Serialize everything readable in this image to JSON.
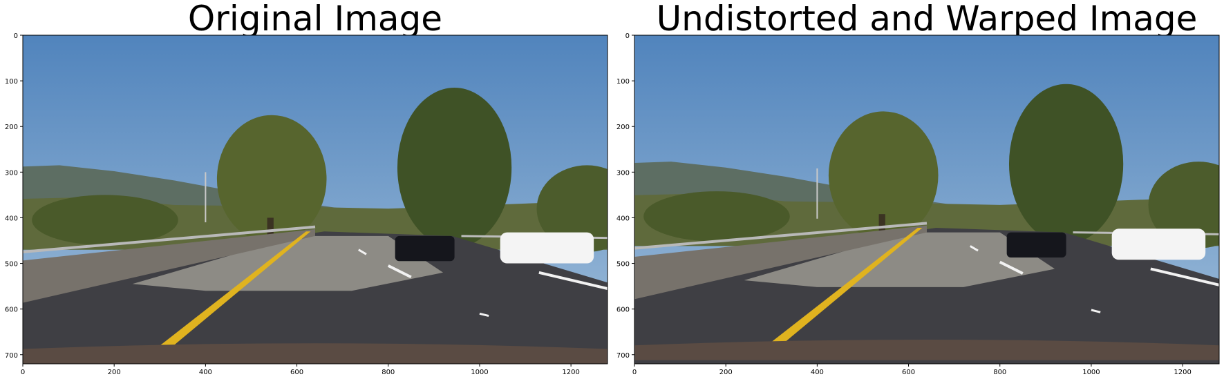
{
  "figure": {
    "panels": [
      {
        "id": "left",
        "title": "Original Image",
        "x_ticks": [
          "0",
          "200",
          "400",
          "600",
          "800",
          "1000",
          "1200"
        ],
        "y_ticks": [
          "0",
          "100",
          "200",
          "300",
          "400",
          "500",
          "600",
          "700"
        ]
      },
      {
        "id": "right",
        "title": "Undistorted and Warped Image",
        "x_ticks": [
          "0",
          "200",
          "400",
          "600",
          "800",
          "1000",
          "1200"
        ],
        "y_ticks": [
          "0",
          "100",
          "200",
          "300",
          "400",
          "500",
          "600",
          "700"
        ]
      }
    ],
    "image_axis": {
      "x_range": [
        0,
        1280
      ],
      "y_range": [
        720,
        0
      ]
    },
    "colors": {
      "sky_top": "#4a7fba",
      "sky_bottom": "#a8c4dd",
      "hills": "#5d6e63",
      "trees": "#4a5a2a",
      "road": "#3f3f44",
      "road_light": "#8d8b85",
      "lane_yellow": "#e0b31f",
      "lane_white": "#f2f2f2",
      "car_dark": "#15161c",
      "car_white": "#f4f4f4",
      "hood": "#5a4b43"
    }
  }
}
